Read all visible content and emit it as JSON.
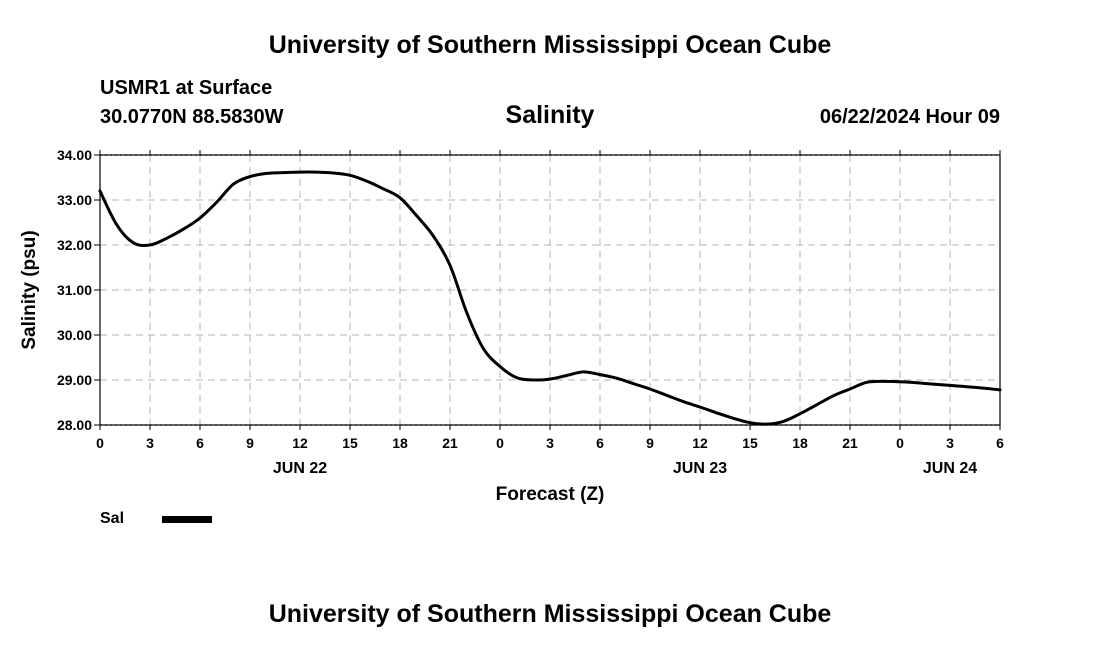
{
  "header": {
    "top_title": "University of Southern Mississippi Ocean Cube",
    "station": "USMR1 at Surface",
    "coords": "30.0770N  88.5830W",
    "run_time": "06/22/2024 Hour 09",
    "bottom_title": "University of Southern Mississippi Ocean Cube"
  },
  "legend": {
    "label": "Sal",
    "color": "#000000"
  },
  "chart_data": {
    "type": "line",
    "title": "Salinity",
    "xlabel": "Forecast (Z)",
    "ylabel": "Salinity (psu)",
    "ylim": [
      28.0,
      34.0
    ],
    "yticks": [
      "28.00",
      "29.00",
      "30.00",
      "31.00",
      "32.00",
      "33.00",
      "34.00"
    ],
    "xlim_hours": [
      0,
      54
    ],
    "xtick_labels": [
      "0",
      "3",
      "6",
      "9",
      "12",
      "15",
      "18",
      "21",
      "0",
      "3",
      "6",
      "9",
      "12",
      "15",
      "18",
      "21",
      "0",
      "3",
      "6"
    ],
    "date_labels": [
      {
        "label": "JUN 22",
        "hour": 12
      },
      {
        "label": "JUN 23",
        "hour": 36
      },
      {
        "label": "JUN 24",
        "hour": 51
      }
    ],
    "grid": true,
    "series": [
      {
        "name": "Sal",
        "x_hours": [
          0,
          1,
          2,
          3,
          4,
          5,
          6,
          7,
          8,
          9,
          10,
          11,
          12,
          13,
          14,
          15,
          16,
          17,
          18,
          19,
          20,
          21,
          22,
          23,
          24,
          25,
          26,
          27,
          28,
          29,
          30,
          31,
          32,
          33,
          34,
          35,
          36,
          37,
          38,
          39,
          40,
          41,
          42,
          43,
          44,
          45,
          46,
          47,
          48,
          49,
          50,
          51,
          52,
          53,
          54
        ],
        "values": [
          33.2,
          32.45,
          32.05,
          32.0,
          32.15,
          32.35,
          32.6,
          32.95,
          33.35,
          33.52,
          33.59,
          33.61,
          33.62,
          33.62,
          33.6,
          33.55,
          33.42,
          33.25,
          33.05,
          32.65,
          32.2,
          31.55,
          30.5,
          29.7,
          29.3,
          29.05,
          29.0,
          29.02,
          29.1,
          29.18,
          29.12,
          29.04,
          28.92,
          28.8,
          28.66,
          28.52,
          28.4,
          28.27,
          28.15,
          28.05,
          28.02,
          28.08,
          28.25,
          28.45,
          28.65,
          28.8,
          28.95,
          28.97,
          28.96,
          28.94,
          28.91,
          28.88,
          28.85,
          28.82,
          28.78
        ]
      }
    ]
  }
}
